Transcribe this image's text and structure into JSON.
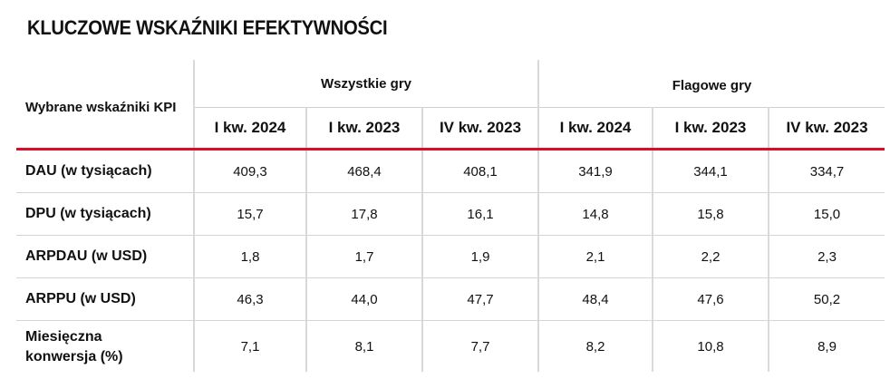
{
  "title": "KLUCZOWE WSKAŹNIKI EFEKTYWNOŚCI",
  "corner_label": "Wybrane wskaźniki KPI",
  "groups": [
    "Wszystkie gry",
    "Flagowe gry"
  ],
  "periods": [
    "I kw. 2024",
    "I kw. 2023",
    "IV kw. 2023",
    "I kw. 2024",
    "I kw. 2023",
    "IV kw. 2023"
  ],
  "rows": [
    {
      "label": "DAU (w tysiącach)",
      "values": [
        "409,3",
        "468,4",
        "408,1",
        "341,9",
        "344,1",
        "334,7"
      ]
    },
    {
      "label": "DPU (w tysiącach)",
      "values": [
        "15,7",
        "17,8",
        "16,1",
        "14,8",
        "15,8",
        "15,0"
      ]
    },
    {
      "label": "ARPDAU (w USD)",
      "values": [
        "1,8",
        "1,7",
        "1,9",
        "2,1",
        "2,2",
        "2,3"
      ]
    },
    {
      "label": "ARPPU (w USD)",
      "values": [
        "46,3",
        "44,0",
        "47,7",
        "48,4",
        "47,6",
        "50,2"
      ]
    },
    {
      "label": "Miesięczna konwersja (%)",
      "values": [
        "7,1",
        "8,1",
        "7,7",
        "8,2",
        "10,8",
        "8,9"
      ]
    }
  ],
  "colors": {
    "accent_rule": "#d6102b",
    "separator": "#d9d9d9",
    "row_rule": "#d4d4d4"
  }
}
